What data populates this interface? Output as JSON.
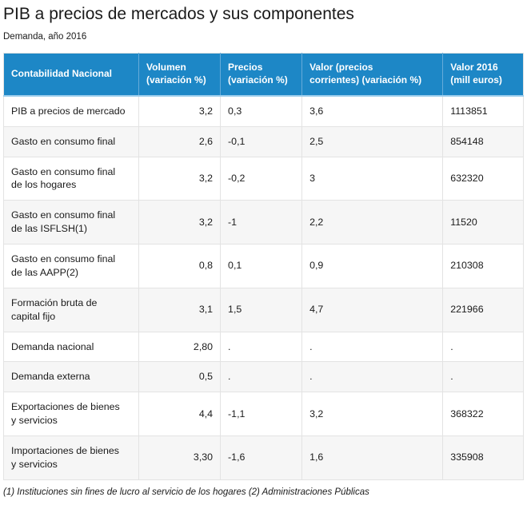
{
  "page": {
    "title": "PIB a precios de mercados y sus componentes",
    "subtitle": "Demanda, año 2016",
    "footnote": "(1) Instituciones sin fines de lucro al servicio de los hogares (2) Administraciones Públicas"
  },
  "colors": {
    "header-bg": "#1d87c6",
    "header-text": "#ffffff",
    "header-divider": "#66abd9",
    "header-underline": "#9ccdec",
    "row-bg": "#ffffff",
    "row-alt-bg": "#f6f6f6",
    "border": "#e3e3e3",
    "text": "#1a1a1a",
    "title-text": "#1a1a1a"
  },
  "table": {
    "columns": [
      {
        "label": "Contabilidad Nacional",
        "align": "left"
      },
      {
        "label": "Volumen\n(variación %)",
        "align": "left",
        "value_align": "right"
      },
      {
        "label": "Precios\n(variación %)",
        "align": "left",
        "value_align": "left"
      },
      {
        "label": "Valor (precios\ncorrientes) (variación %)",
        "align": "left",
        "value_align": "left"
      },
      {
        "label": "Valor 2016\n(mill euros)",
        "align": "left",
        "value_align": "left"
      }
    ],
    "rows": [
      {
        "label": "PIB a precios de mercado",
        "values": [
          "3,2",
          "0,3",
          "3,6",
          "1113851"
        ]
      },
      {
        "label": "Gasto en consumo final",
        "values": [
          "2,6",
          "-0,1",
          "2,5",
          "854148"
        ]
      },
      {
        "label": "Gasto en consumo final\nde los hogares",
        "values": [
          "3,2",
          "-0,2",
          "3",
          "632320"
        ]
      },
      {
        "label": "Gasto en consumo final\nde las ISFLSH(1)",
        "values": [
          "3,2",
          "-1",
          "2,2",
          "11520"
        ]
      },
      {
        "label": "Gasto en consumo final\nde las AAPP(2)",
        "values": [
          "0,8",
          "0,1",
          "0,9",
          "210308"
        ]
      },
      {
        "label": "Formación bruta de\ncapital fijo",
        "values": [
          "3,1",
          "1,5",
          "4,7",
          "221966"
        ]
      },
      {
        "label": "Demanda nacional",
        "values": [
          "2,80",
          ".",
          ".",
          "."
        ]
      },
      {
        "label": "Demanda externa",
        "values": [
          "0,5",
          ".",
          ".",
          "."
        ]
      },
      {
        "label": "Exportaciones de bienes\ny servicios",
        "values": [
          "4,4",
          "-1,1",
          "3,2",
          "368322"
        ]
      },
      {
        "label": "Importaciones de bienes\ny servicios",
        "values": [
          "3,30",
          "-1,6",
          "1,6",
          "335908"
        ]
      }
    ]
  },
  "chart_data": {
    "type": "table",
    "title": "PIB a precios de mercados y sus componentes",
    "subtitle": "Demanda, año 2016",
    "columns": [
      "Contabilidad Nacional",
      "Volumen (variación %)",
      "Precios (variación %)",
      "Valor (precios corrientes) (variación %)",
      "Valor 2016 (mill euros)"
    ],
    "rows": [
      [
        "PIB a precios de mercado",
        "3,2",
        "0,3",
        "3,6",
        "1113851"
      ],
      [
        "Gasto en consumo final",
        "2,6",
        "-0,1",
        "2,5",
        "854148"
      ],
      [
        "Gasto en consumo final de los hogares",
        "3,2",
        "-0,2",
        "3",
        "632320"
      ],
      [
        "Gasto en consumo final de las ISFLSH(1)",
        "3,2",
        "-1",
        "2,2",
        "11520"
      ],
      [
        "Gasto en consumo final de las AAPP(2)",
        "0,8",
        "0,1",
        "0,9",
        "210308"
      ],
      [
        "Formación bruta de capital fijo",
        "3,1",
        "1,5",
        "4,7",
        "221966"
      ],
      [
        "Demanda nacional",
        "2,80",
        ".",
        ".",
        "."
      ],
      [
        "Demanda externa",
        "0,5",
        ".",
        ".",
        "."
      ],
      [
        "Exportaciones de bienes y servicios",
        "4,4",
        "-1,1",
        "3,2",
        "368322"
      ],
      [
        "Importaciones de bienes y servicios",
        "3,30",
        "-1,6",
        "1,6",
        "335908"
      ]
    ],
    "footnote": "(1) Instituciones sin fines de lucro al servicio de los hogares (2) Administraciones Públicas"
  }
}
